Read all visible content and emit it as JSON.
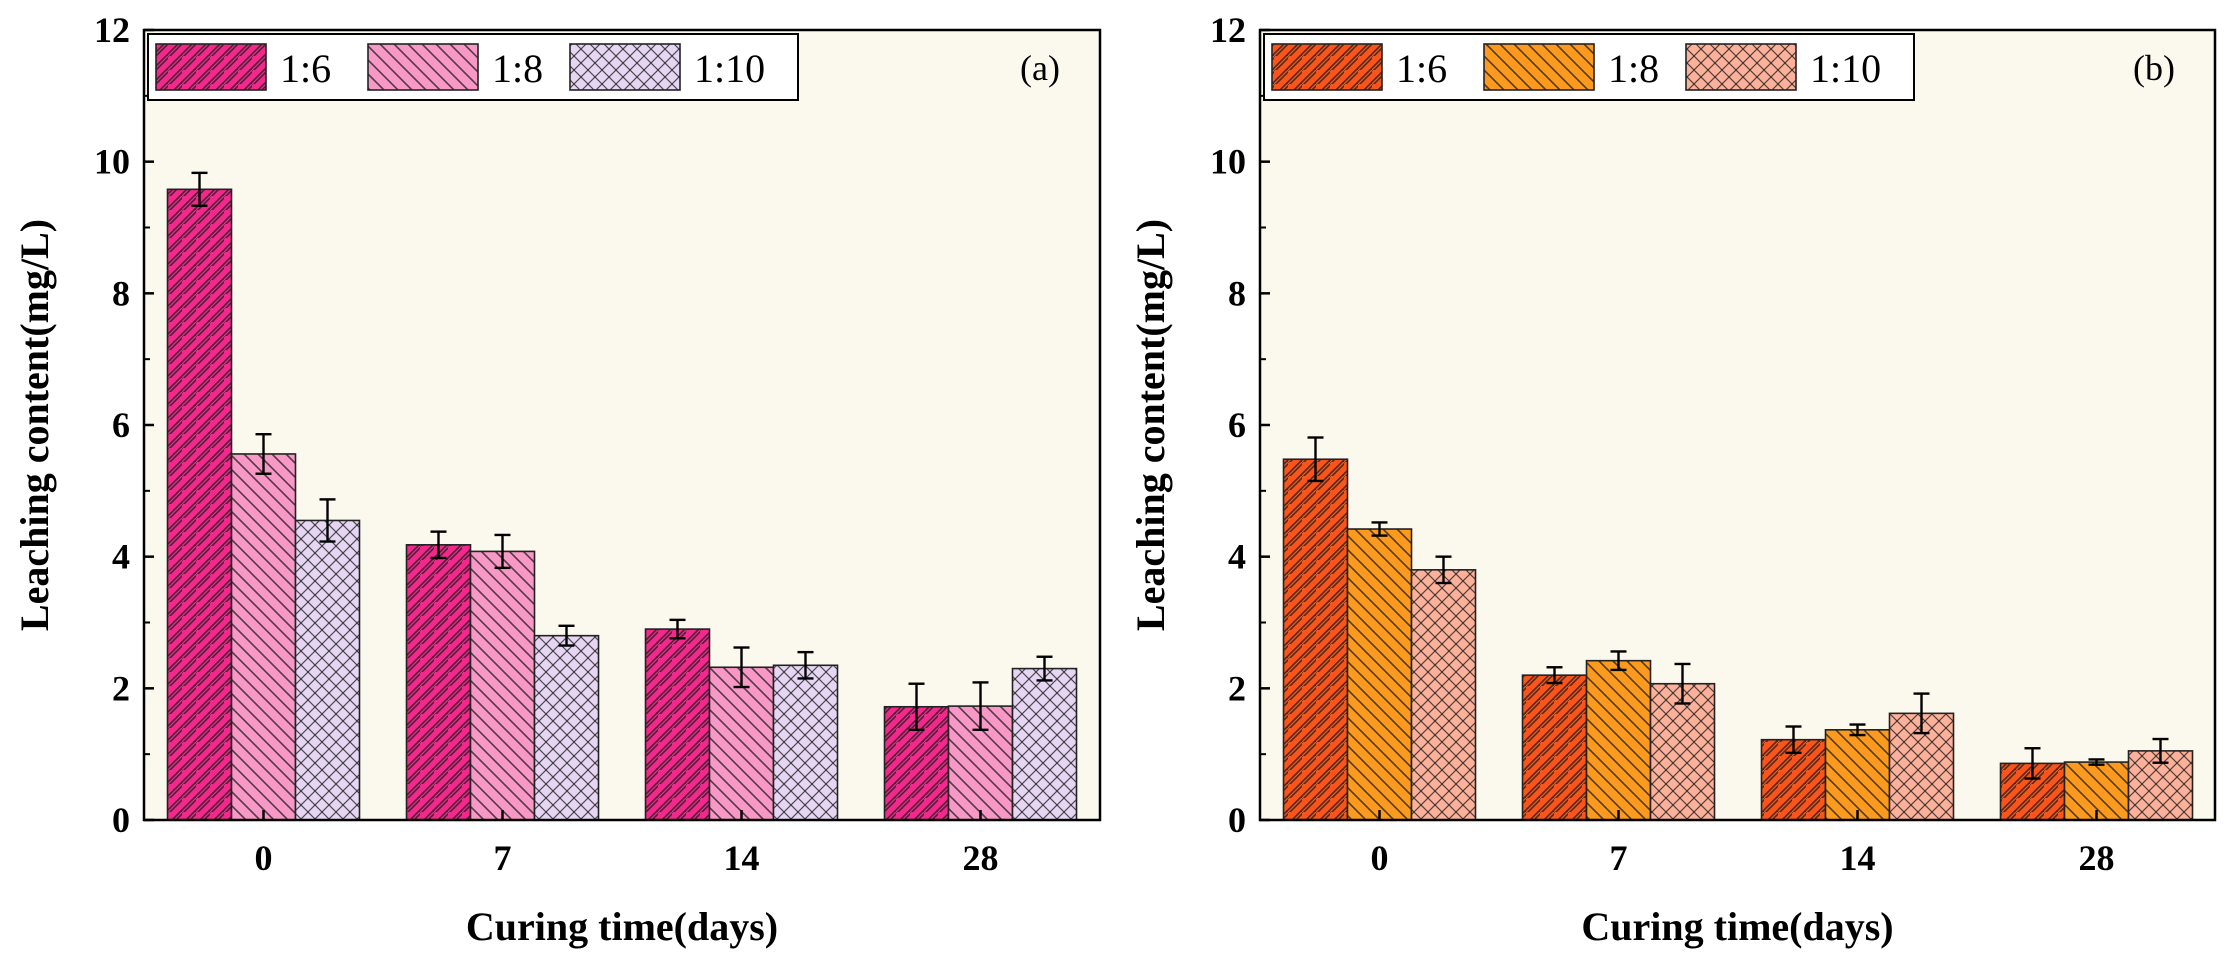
{
  "figure": {
    "background": "#fbf9ee"
  },
  "chart_data": [
    {
      "type": "bar",
      "panel_label": "(a)",
      "categories": [
        "0",
        "7",
        "14",
        "28"
      ],
      "xlabel": "Curing time(days)",
      "ylabel": "Leaching content(mg/L)",
      "ylim": [
        0,
        12
      ],
      "yticks": [
        "0",
        "2",
        "4",
        "6",
        "8",
        "10",
        "12"
      ],
      "grid": false,
      "legend_position": "top-left",
      "series": [
        {
          "name": "1:6",
          "values": [
            9.58,
            4.18,
            2.9,
            1.72
          ],
          "errors": [
            0.25,
            0.2,
            0.14,
            0.35
          ],
          "color": "#f5278c",
          "pattern": "hatch-right"
        },
        {
          "name": "1:8",
          "values": [
            5.56,
            4.08,
            2.32,
            1.73
          ],
          "errors": [
            0.3,
            0.25,
            0.3,
            0.36
          ],
          "color": "#f898c6",
          "pattern": "hatch-left"
        },
        {
          "name": "1:10",
          "values": [
            4.55,
            2.8,
            2.35,
            2.3
          ],
          "errors": [
            0.32,
            0.15,
            0.2,
            0.18
          ],
          "color": "#e6d6f4",
          "pattern": "crosshatch"
        }
      ]
    },
    {
      "type": "bar",
      "panel_label": "(b)",
      "categories": [
        "0",
        "7",
        "14",
        "28"
      ],
      "xlabel": "Curing time(days)",
      "ylabel": "Leaching content(mg/L)",
      "ylim": [
        0,
        12
      ],
      "yticks": [
        "0",
        "2",
        "4",
        "6",
        "8",
        "10",
        "12"
      ],
      "grid": false,
      "legend_position": "top-left",
      "series": [
        {
          "name": "1:6",
          "values": [
            5.48,
            2.2,
            1.22,
            0.86
          ],
          "errors": [
            0.33,
            0.12,
            0.2,
            0.23
          ],
          "color": "#fc5418",
          "pattern": "hatch-right"
        },
        {
          "name": "1:8",
          "values": [
            4.42,
            2.42,
            1.37,
            0.88
          ],
          "errors": [
            0.1,
            0.14,
            0.08,
            0.04
          ],
          "color": "#fc9a20",
          "pattern": "hatch-left"
        },
        {
          "name": "1:10",
          "values": [
            3.8,
            2.07,
            1.62,
            1.05
          ],
          "errors": [
            0.2,
            0.3,
            0.3,
            0.18
          ],
          "color": "#fdb19a",
          "pattern": "crosshatch"
        }
      ]
    }
  ]
}
